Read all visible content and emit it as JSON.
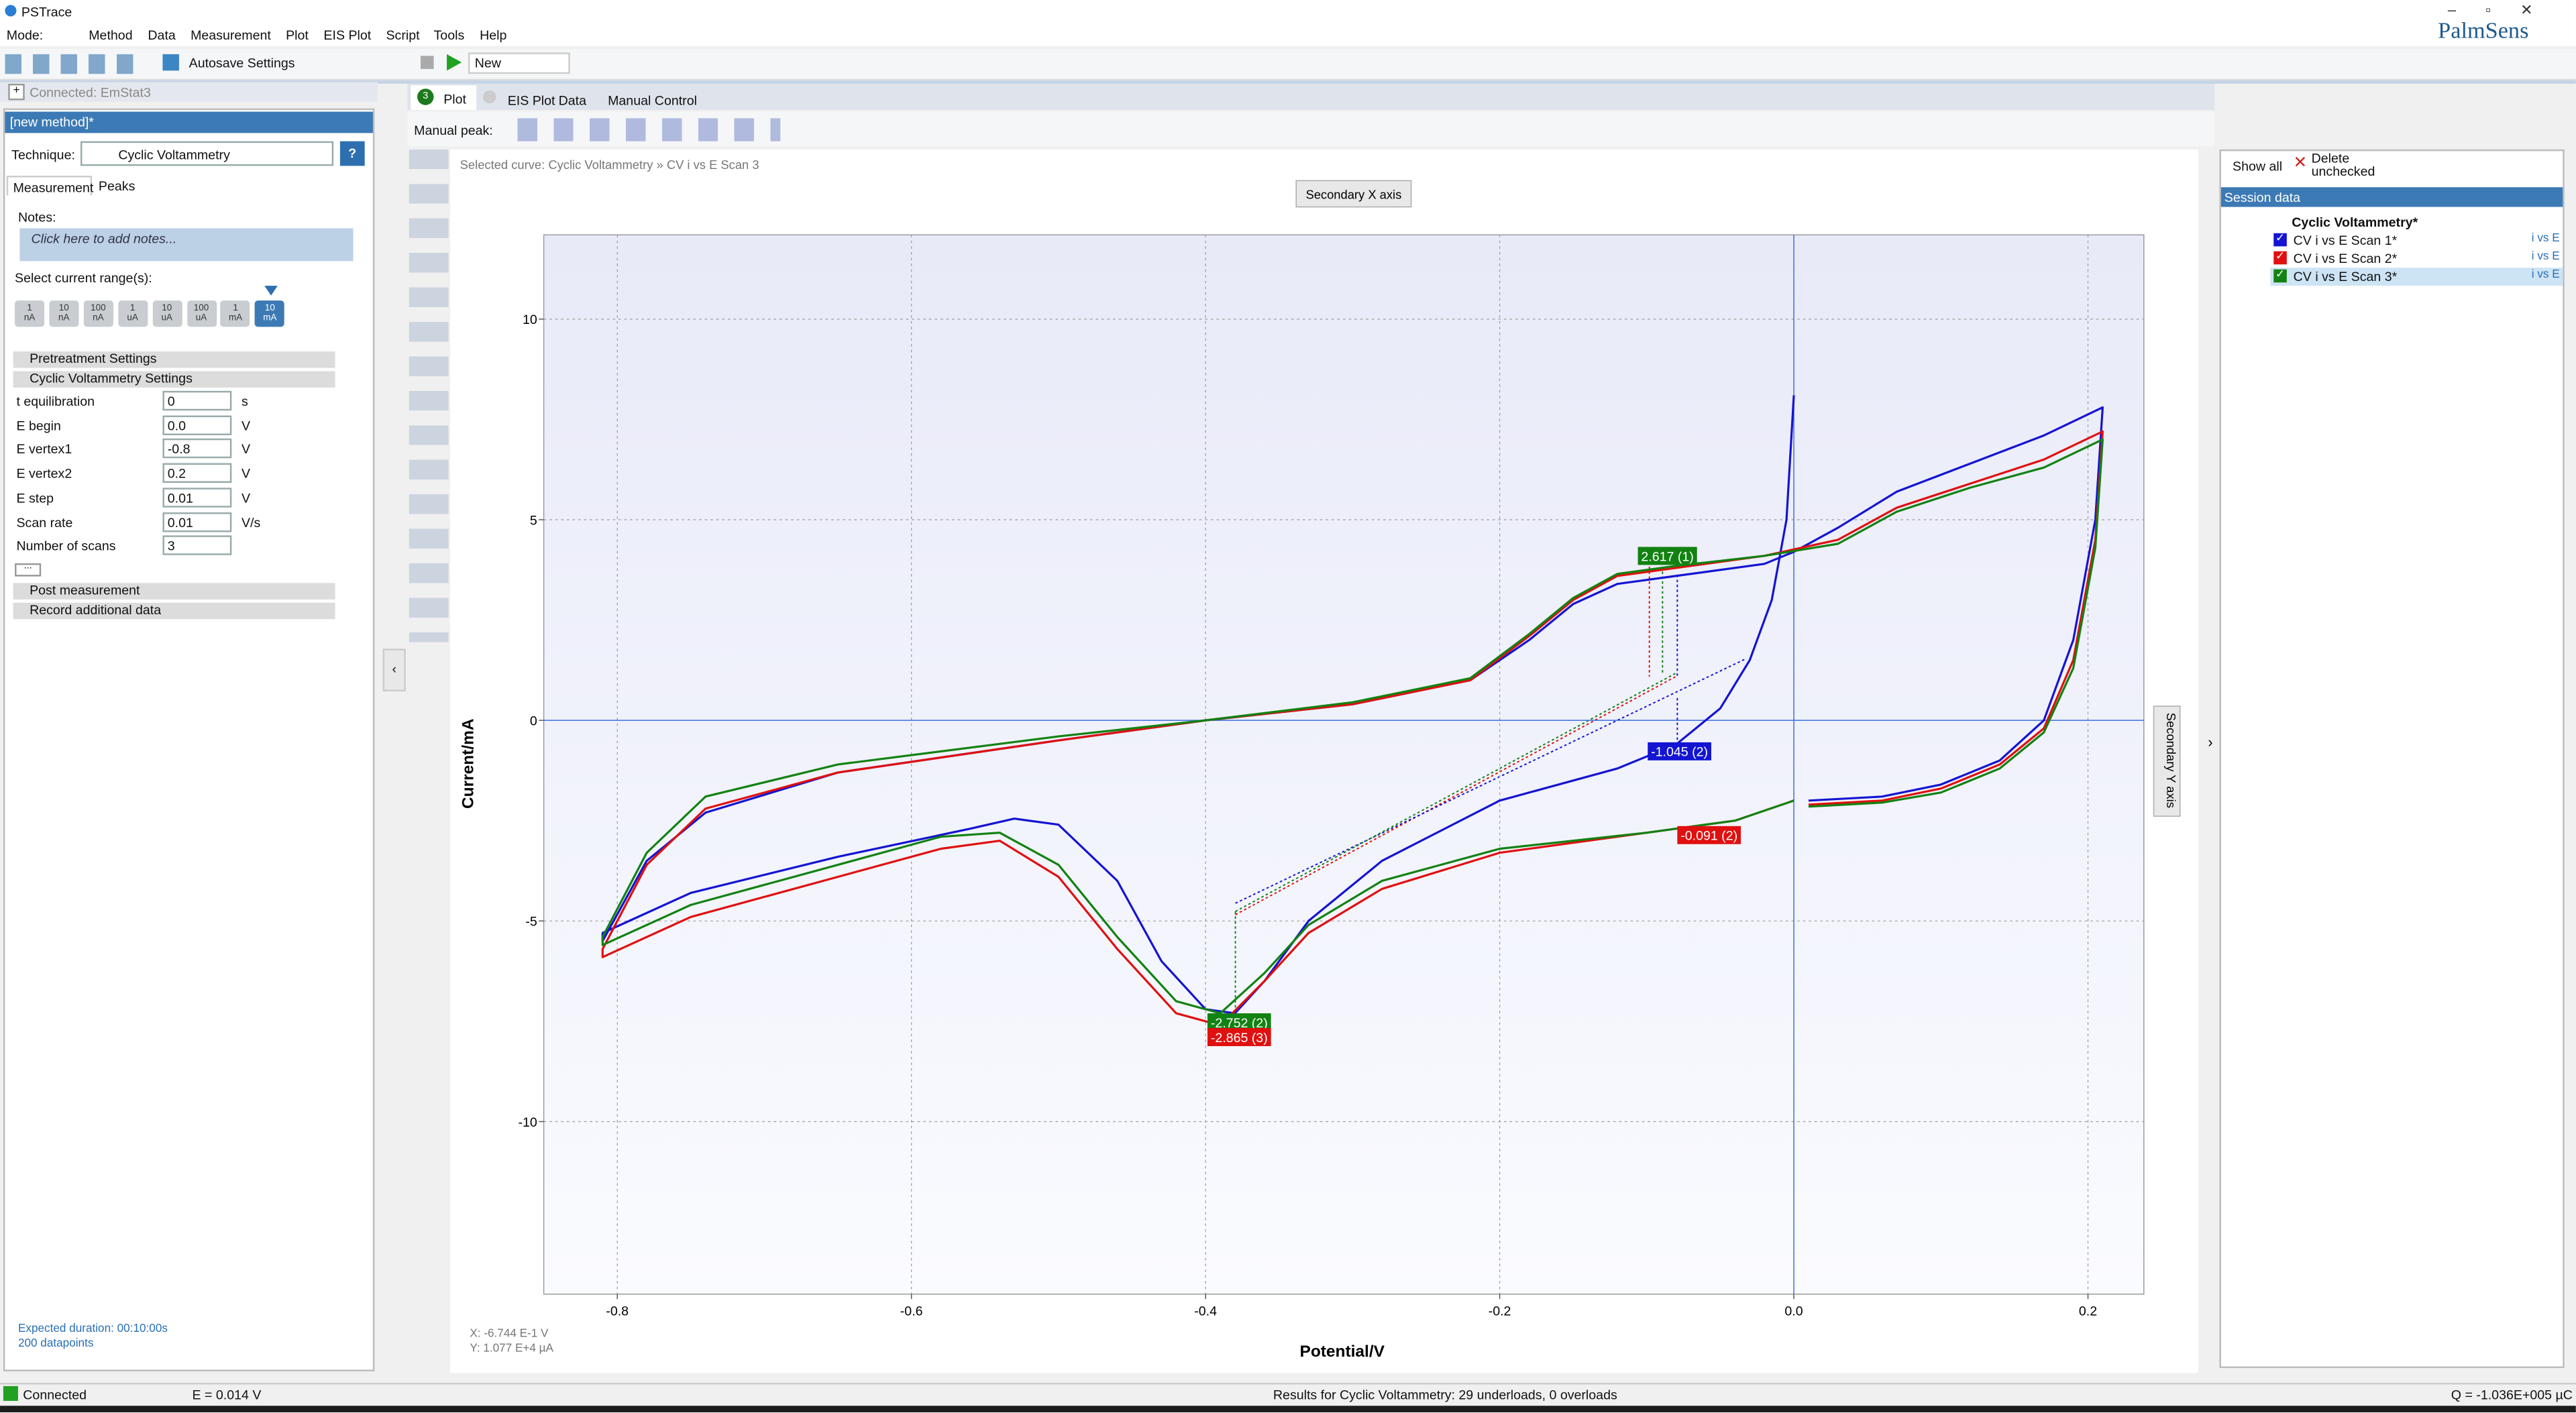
{
  "window": {
    "title": "PSTrace"
  },
  "menu": [
    "Mode:",
    "Method",
    "Data",
    "Measurement",
    "Plot",
    "EIS Plot",
    "Script",
    "Tools",
    "Help"
  ],
  "toolbar": {
    "autosave": "Autosave Settings",
    "new": "New"
  },
  "brand": "PalmSens",
  "connection": "Connected: EmStat3",
  "method_panel": {
    "title": "[new method]*",
    "technique_label": "Technique:",
    "technique": "Cyclic Voltammetry",
    "help": "?",
    "tabs": [
      "Measurement",
      "Peaks"
    ],
    "notes_label": "Notes:",
    "notes_placeholder": "Click here to add notes...",
    "current_range_label": "Select current range(s):",
    "current_ranges": [
      [
        "1",
        "nA"
      ],
      [
        "10",
        "nA"
      ],
      [
        "100",
        "nA"
      ],
      [
        "1",
        "uA"
      ],
      [
        "10",
        "uA"
      ],
      [
        "100",
        "uA"
      ],
      [
        "1",
        "mA"
      ],
      [
        "10",
        "mA"
      ]
    ],
    "pretreatment": "Pretreatment Settings",
    "cv_settings": "Cyclic Voltammetry Settings",
    "parameters": [
      {
        "name": "t equilibration",
        "value": "0",
        "unit": "s"
      },
      {
        "name": "E begin",
        "value": "0.0",
        "unit": "V"
      },
      {
        "name": "E vertex1",
        "value": "-0.8",
        "unit": "V"
      },
      {
        "name": "E vertex2",
        "value": "0.2",
        "unit": "V"
      },
      {
        "name": "E step",
        "value": "0.01",
        "unit": "V"
      },
      {
        "name": "Scan rate",
        "value": "0.01",
        "unit": "V/s"
      },
      {
        "name": "Number of scans",
        "value": "3",
        "unit": ""
      }
    ],
    "more": "...",
    "post": "Post measurement",
    "record": "Record additional data",
    "expected": "Expected duration: 00:10:00s",
    "datapoints": "200 datapoints"
  },
  "plot_tabs": [
    "Plot",
    "EIS Plot",
    "Data",
    "Manual Control"
  ],
  "plot_tab_badge": "3",
  "manual_peak": "Manual peak:",
  "selected_curve": "Selected curve: Cyclic Voltammetry » CV i vs E Scan 3",
  "secondary_x": "Secondary X axis",
  "secondary_y": "Secondary Y axis",
  "cursor": [
    "X: -6.744 E-1 V",
    "Y: 1.077 E+4 µA"
  ],
  "chart_data": {
    "type": "line",
    "xlabel": "Potential/V",
    "ylabel": "Current/mA",
    "xlim": [
      -0.85,
      0.238
    ],
    "ylim": [
      -14.3,
      12.1
    ],
    "xticks": [
      -0.8,
      -0.6,
      -0.4,
      -0.2,
      {
        "value": 0,
        "label": "0.0"
      },
      0.2
    ],
    "yticks": [
      -10,
      -5,
      0,
      5,
      10
    ],
    "grid": true,
    "series": [
      {
        "name": "CV i vs E Scan 1*",
        "color": "#1414d2",
        "x": [
          0.0,
          -0.005,
          -0.015,
          -0.03,
          -0.05,
          -0.08,
          -0.12,
          -0.2,
          -0.28,
          -0.33,
          -0.36,
          -0.38,
          -0.4,
          -0.43,
          -0.46,
          -0.5,
          -0.53,
          -0.56,
          -0.65,
          -0.75,
          -0.81,
          -0.81,
          -0.78,
          -0.74,
          -0.65,
          -0.5,
          -0.4,
          -0.3,
          -0.22,
          -0.18,
          -0.15,
          -0.12,
          -0.08,
          -0.02,
          0.0,
          0.03,
          0.07,
          0.12,
          0.17,
          0.21,
          0.205,
          0.19,
          0.17,
          0.14,
          0.1,
          0.06,
          0.01
        ],
        "y": [
          8.1,
          5.0,
          3.0,
          1.5,
          0.3,
          -0.6,
          -1.2,
          -2.0,
          -3.5,
          -5.0,
          -6.5,
          -7.3,
          -7.2,
          -6.0,
          -4.0,
          -2.6,
          -2.45,
          -2.7,
          -3.4,
          -4.3,
          -5.3,
          -5.5,
          -3.5,
          -2.3,
          -1.3,
          -0.5,
          0.0,
          0.4,
          1.0,
          2.0,
          2.9,
          3.4,
          3.6,
          3.9,
          4.2,
          4.8,
          5.7,
          6.4,
          7.1,
          7.8,
          5.0,
          2.0,
          0.0,
          -1.0,
          -1.6,
          -1.9,
          -2.0
        ]
      },
      {
        "name": "CV i vs E Scan 2*",
        "color": "#e01010",
        "x": [
          0.0,
          -0.04,
          -0.1,
          -0.2,
          -0.28,
          -0.33,
          -0.36,
          -0.39,
          -0.42,
          -0.46,
          -0.5,
          -0.54,
          -0.58,
          -0.65,
          -0.75,
          -0.81,
          -0.81,
          -0.78,
          -0.74,
          -0.65,
          -0.5,
          -0.4,
          -0.3,
          -0.22,
          -0.18,
          -0.15,
          -0.12,
          -0.08,
          -0.02,
          0.03,
          0.07,
          0.12,
          0.17,
          0.21,
          0.205,
          0.19,
          0.17,
          0.14,
          0.1,
          0.06,
          0.01
        ],
        "y": [
          -2.0,
          -2.5,
          -2.8,
          -3.3,
          -4.2,
          -5.3,
          -6.5,
          -7.6,
          -7.3,
          -5.7,
          -3.9,
          -3.0,
          -3.2,
          -3.9,
          -4.9,
          -5.9,
          -5.7,
          -3.6,
          -2.2,
          -1.3,
          -0.5,
          0.0,
          0.4,
          1.0,
          2.1,
          3.0,
          3.6,
          3.8,
          4.1,
          4.5,
          5.3,
          5.9,
          6.5,
          7.2,
          4.5,
          1.5,
          -0.2,
          -1.1,
          -1.7,
          -2.0,
          -2.1
        ]
      },
      {
        "name": "CV i vs E Scan 3*",
        "color": "#128212",
        "x": [
          0.0,
          -0.04,
          -0.1,
          -0.2,
          -0.28,
          -0.33,
          -0.36,
          -0.39,
          -0.42,
          -0.46,
          -0.5,
          -0.54,
          -0.58,
          -0.65,
          -0.75,
          -0.81,
          -0.81,
          -0.78,
          -0.74,
          -0.65,
          -0.5,
          -0.4,
          -0.3,
          -0.22,
          -0.18,
          -0.15,
          -0.12,
          -0.08,
          -0.02,
          0.03,
          0.07,
          0.12,
          0.17,
          0.21,
          0.205,
          0.19,
          0.17,
          0.14,
          0.1,
          0.06,
          0.01
        ],
        "y": [
          -2.0,
          -2.5,
          -2.8,
          -3.2,
          -4.0,
          -5.1,
          -6.3,
          -7.3,
          -7.0,
          -5.4,
          -3.6,
          -2.8,
          -2.9,
          -3.6,
          -4.6,
          -5.6,
          -5.4,
          -3.3,
          -1.9,
          -1.1,
          -0.4,
          0.0,
          0.45,
          1.05,
          2.15,
          3.05,
          3.65,
          3.85,
          4.1,
          4.4,
          5.2,
          5.8,
          6.3,
          7.0,
          4.3,
          1.3,
          -0.3,
          -1.2,
          -1.8,
          -2.05,
          -2.15
        ]
      }
    ],
    "annotations": [
      {
        "text": "2.617 (1)",
        "color": "#128212"
      },
      {
        "text": "-2.752 (2)",
        "color": "#128212"
      },
      {
        "text": "-2.865 (3)",
        "color": "#e01010"
      },
      {
        "text": "-1.045 (2)",
        "color": "#1414d2"
      },
      {
        "text": "-0.091 (2)",
        "color": "#e01010"
      }
    ]
  },
  "session": {
    "show_all": "Show all",
    "delete": "Delete unchecked",
    "title": "Session data",
    "root": "Cyclic Voltammetry*",
    "tag": "i vs E"
  },
  "status": {
    "connected": "Connected",
    "potential": "E = 0.014 V",
    "results": "Results for Cyclic Voltammetry: 29 underloads, 0 overloads",
    "charge": "Q = -1.036E+005 µC"
  }
}
